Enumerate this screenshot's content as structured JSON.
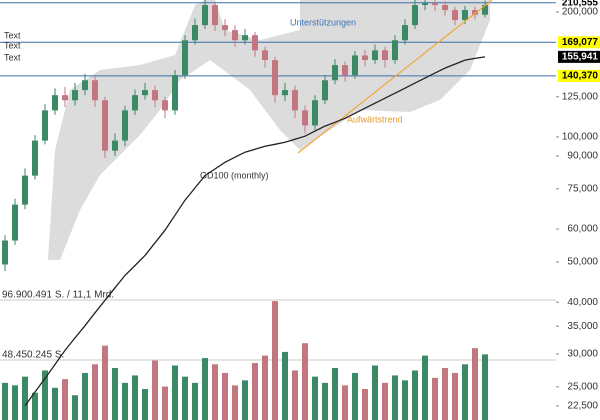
{
  "chart_data": {
    "type": "candlestick",
    "ylim": [
      20800,
      213800
    ],
    "log_scale": true,
    "yticks": [
      {
        "value": 200000,
        "label": "200,000"
      },
      {
        "value": 125000,
        "label": "125,000"
      },
      {
        "value": 100000,
        "label": "100,000"
      },
      {
        "value": 90000,
        "label": "90,000"
      },
      {
        "value": 75000,
        "label": "75,000"
      },
      {
        "value": 60000,
        "label": "60,000"
      },
      {
        "value": 50000,
        "label": "50,000"
      },
      {
        "value": 40000,
        "label": "40,000"
      },
      {
        "value": 35000,
        "label": "35,000"
      },
      {
        "value": 30000,
        "label": "30,000"
      },
      {
        "value": 25000,
        "label": "25,000"
      },
      {
        "value": 22500,
        "label": "22,500"
      }
    ],
    "levels": [
      {
        "value": 210555,
        "label": "210,555",
        "color": "#ffffff",
        "line": true
      },
      {
        "value": 169077,
        "label": "169,077",
        "color": "#ffff00",
        "line": true
      },
      {
        "value": 155941,
        "label": "155,941",
        "color": "#000000",
        "line": false
      },
      {
        "value": 140370,
        "label": "140,370",
        "color": "#ffff00",
        "line": true
      }
    ],
    "level_line_color": "#3d6fa8",
    "up_color": "#3b8a65",
    "down_color": "#c27780",
    "open": [
      49300,
      56300,
      68700,
      80700,
      98000,
      115900,
      126100,
      122600,
      129700,
      137000,
      122600,
      92700,
      98000,
      115900,
      126100,
      129700,
      122600,
      115900,
      140900,
      171000,
      186000,
      207900,
      186000,
      180900,
      171000,
      175900,
      161700,
      153200,
      126100,
      129700,
      115900,
      106600,
      122600,
      137000,
      149000,
      140900,
      157200,
      153200,
      161700,
      153200,
      171000,
      186000,
      207900,
      210000,
      207900,
      202200,
      191200,
      202200,
      197000
    ],
    "high": [
      58000,
      71000,
      84000,
      101000,
      120000,
      131000,
      132000,
      135000,
      142000,
      140000,
      125000,
      102000,
      119000,
      130000,
      135000,
      133000,
      125000,
      145000,
      176000,
      193000,
      216000,
      212000,
      192000,
      186000,
      182000,
      179000,
      165000,
      156000,
      135000,
      133000,
      119000,
      126000,
      141000,
      154000,
      152000,
      161000,
      162000,
      167000,
      165000,
      176000,
      192000,
      214000,
      218000,
      216000,
      212000,
      206000,
      207000,
      206000,
      213000
    ],
    "low": [
      47500,
      55000,
      67000,
      79000,
      96000,
      113000,
      118000,
      119000,
      126000,
      118000,
      89000,
      90000,
      95000,
      113000,
      123000,
      118000,
      111000,
      113000,
      138000,
      167000,
      182000,
      180000,
      175000,
      165000,
      167000,
      156000,
      147000,
      121000,
      122000,
      111000,
      102000,
      104000,
      120000,
      134000,
      136000,
      138000,
      148000,
      150000,
      147000,
      150000,
      167000,
      182000,
      202000,
      201000,
      196000,
      186000,
      187000,
      192000,
      194000
    ],
    "close": [
      56300,
      68700,
      80700,
      98000,
      115900,
      126100,
      122600,
      129700,
      137000,
      122600,
      92700,
      98000,
      115900,
      126100,
      129700,
      122600,
      115900,
      140900,
      171000,
      186000,
      207900,
      186000,
      180900,
      171000,
      175900,
      161700,
      153200,
      126100,
      129700,
      115900,
      106600,
      122600,
      137000,
      149000,
      140900,
      157200,
      153200,
      161700,
      153200,
      171000,
      186000,
      207900,
      210000,
      207900,
      202200,
      191200,
      202200,
      197000,
      207900
    ],
    "y2lim": [
      0,
      96900491
    ],
    "y2ticks": [
      {
        "value": 96900491,
        "label": "96.900.491 S. / 11,1 Mrd."
      },
      {
        "value": 48450245,
        "label": "48.450.245 S."
      }
    ],
    "volume": {
      "axis": "y2",
      "values": [
        30000000,
        28000000,
        35000000,
        22000000,
        40000000,
        26000000,
        33000000,
        20000000,
        38000000,
        45000000,
        60000000,
        42000000,
        30000000,
        36000000,
        25000000,
        48000000,
        27000000,
        44000000,
        35000000,
        30000000,
        50000000,
        45000000,
        38000000,
        28000000,
        32000000,
        46000000,
        52000000,
        96000000,
        55000000,
        40000000,
        62000000,
        35000000,
        30000000,
        42000000,
        28000000,
        38000000,
        25000000,
        44000000,
        30000000,
        36000000,
        32000000,
        40000000,
        52000000,
        34000000,
        42000000,
        38000000,
        45000000,
        58000000,
        53000000
      ]
    },
    "gd100": {
      "name": "GD100 (monthly)",
      "color": "#222222",
      "values": [
        null,
        null,
        22500,
        24300,
        26200,
        28300,
        30600,
        32800,
        35100,
        37700,
        40400,
        43300,
        46400,
        49000,
        51800,
        55600,
        59600,
        64800,
        70400,
        75400,
        80700,
        83700,
        86900,
        89400,
        91900,
        93400,
        95000,
        96000,
        97100,
        98700,
        100400,
        103300,
        106200,
        108500,
        110900,
        114000,
        117300,
        120600,
        124000,
        127500,
        131100,
        134800,
        138600,
        142500,
        146500,
        149800,
        153200,
        154600,
        155941
      ]
    },
    "annotations": [
      {
        "text": "Unterstützungen",
        "color": "#3a74bd"
      },
      {
        "text": "Aufwärtstrend",
        "color": "#e39a2e"
      }
    ],
    "side_labels": [
      "Text",
      "Text",
      "Text"
    ]
  }
}
